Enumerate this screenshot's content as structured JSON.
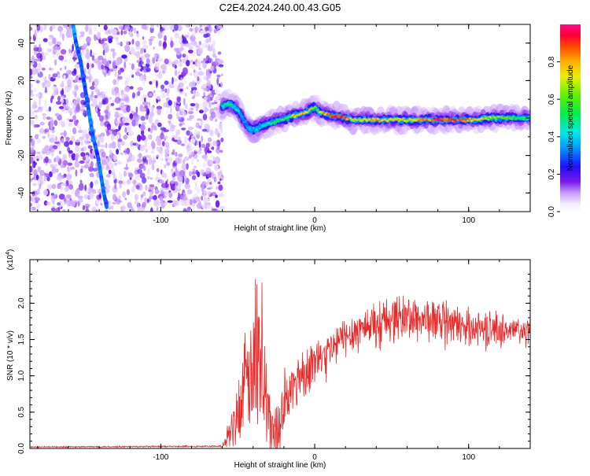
{
  "title": "C2E4.2024.240.00.43.G05",
  "colors": {
    "snr_line": "#e82a2a",
    "frame": "#000000"
  },
  "chart_data": [
    {
      "type": "heatmap",
      "xlabel": "Height of straight line (km)",
      "ylabel": "Frequency (Hz)",
      "xlim": [
        -185,
        140
      ],
      "ylim": [
        -50,
        50
      ],
      "xticks": [
        -100,
        0,
        100
      ],
      "xtick_labels": [
        "-100",
        "0",
        "100"
      ],
      "yticks": [
        -40,
        -20,
        0,
        20,
        40
      ],
      "ytick_labels": [
        "-40",
        "-20",
        "0",
        "20",
        "40"
      ],
      "colorbar": {
        "label": "Normalized spectral amplitude",
        "range": [
          0.0,
          1.0
        ],
        "ticks": [
          0.0,
          0.2,
          0.4,
          0.6,
          0.8
        ],
        "tick_labels": [
          "0.0",
          "0.2",
          "0.4",
          "0.6",
          "0.8"
        ]
      },
      "noise_region_x": [
        -185,
        -60
      ],
      "ridge": [
        {
          "x": -60,
          "y": 6,
          "a": 0.45
        },
        {
          "x": -56,
          "y": 8,
          "a": 0.5
        },
        {
          "x": -52,
          "y": 6,
          "a": 0.45
        },
        {
          "x": -48,
          "y": 2,
          "a": 0.35
        },
        {
          "x": -45,
          "y": -3,
          "a": 0.35
        },
        {
          "x": -42,
          "y": -6,
          "a": 0.35
        },
        {
          "x": -38,
          "y": -6,
          "a": 0.4
        },
        {
          "x": -34,
          "y": -4,
          "a": 0.4
        },
        {
          "x": -30,
          "y": -3,
          "a": 0.45
        },
        {
          "x": -26,
          "y": -2,
          "a": 0.5
        },
        {
          "x": -22,
          "y": -1,
          "a": 0.55
        },
        {
          "x": -18,
          "y": 0,
          "a": 0.6
        },
        {
          "x": -14,
          "y": 1,
          "a": 0.7
        },
        {
          "x": -10,
          "y": 2,
          "a": 0.8
        },
        {
          "x": -6,
          "y": 3,
          "a": 0.75
        },
        {
          "x": -3,
          "y": 4,
          "a": 0.7
        },
        {
          "x": 0,
          "y": 6,
          "a": 0.6
        },
        {
          "x": 3,
          "y": 3,
          "a": 0.7
        },
        {
          "x": 7,
          "y": 2,
          "a": 0.8
        },
        {
          "x": 11,
          "y": 1,
          "a": 0.9
        },
        {
          "x": 15,
          "y": 1,
          "a": 0.95
        },
        {
          "x": 20,
          "y": 0,
          "a": 0.85
        },
        {
          "x": 25,
          "y": -1,
          "a": 0.7
        },
        {
          "x": 30,
          "y": -1,
          "a": 0.7
        },
        {
          "x": 35,
          "y": -1,
          "a": 0.75
        },
        {
          "x": 40,
          "y": -1,
          "a": 0.8
        },
        {
          "x": 45,
          "y": -1,
          "a": 0.75
        },
        {
          "x": 50,
          "y": -1,
          "a": 0.7
        },
        {
          "x": 55,
          "y": -1,
          "a": 0.75
        },
        {
          "x": 60,
          "y": -1,
          "a": 0.7
        },
        {
          "x": 65,
          "y": -1,
          "a": 0.75
        },
        {
          "x": 70,
          "y": -1,
          "a": 0.8
        },
        {
          "x": 75,
          "y": -1,
          "a": 0.85
        },
        {
          "x": 80,
          "y": -1,
          "a": 0.95
        },
        {
          "x": 85,
          "y": -1,
          "a": 0.9
        },
        {
          "x": 90,
          "y": -1,
          "a": 0.9
        },
        {
          "x": 95,
          "y": -1,
          "a": 0.85
        },
        {
          "x": 100,
          "y": -1,
          "a": 0.8
        },
        {
          "x": 105,
          "y": -1,
          "a": 0.75
        },
        {
          "x": 110,
          "y": 0,
          "a": 0.7
        },
        {
          "x": 115,
          "y": 0,
          "a": 0.65
        },
        {
          "x": 120,
          "y": 0,
          "a": 0.6
        },
        {
          "x": 125,
          "y": 0,
          "a": 0.6
        },
        {
          "x": 130,
          "y": 0,
          "a": 0.55
        },
        {
          "x": 135,
          "y": 0,
          "a": 0.55
        },
        {
          "x": 140,
          "y": 0,
          "a": 0.5
        }
      ],
      "streak": [
        {
          "x": -157,
          "y": 50,
          "a": 0.35
        },
        {
          "x": -155,
          "y": 40,
          "a": 0.3
        },
        {
          "x": -152,
          "y": 30,
          "a": 0.28
        },
        {
          "x": -150,
          "y": 20,
          "a": 0.28
        },
        {
          "x": -148,
          "y": 10,
          "a": 0.3
        },
        {
          "x": -146,
          "y": 0,
          "a": 0.32
        },
        {
          "x": -144,
          "y": -10,
          "a": 0.3
        },
        {
          "x": -141,
          "y": -20,
          "a": 0.28
        },
        {
          "x": -139,
          "y": -30,
          "a": 0.32
        },
        {
          "x": -137,
          "y": -40,
          "a": 0.3
        },
        {
          "x": -135,
          "y": -48,
          "a": 0.28
        }
      ]
    },
    {
      "type": "line",
      "xlabel": "Height of straight line (km)",
      "ylabel": "SNR (10 * v/v)",
      "y_multiplier_label": "(x10",
      "y_multiplier_exp": "4",
      "y_multiplier_close": ")",
      "xlim": [
        -185,
        140
      ],
      "ylim": [
        0,
        2.6
      ],
      "xticks": [
        -100,
        0,
        100
      ],
      "xtick_labels": [
        "-100",
        "0",
        "100"
      ],
      "yticks": [
        0.0,
        0.5,
        1.0,
        1.5,
        2.0
      ],
      "ytick_labels": [
        "0.0",
        "0.5",
        "1.0",
        "1.5",
        "2.0"
      ],
      "series": [
        {
          "trend": [
            {
              "x": -185,
              "y": 0.02
            },
            {
              "x": -60,
              "y": 0.03
            },
            {
              "x": -52,
              "y": 0.3
            },
            {
              "x": -48,
              "y": 0.55
            },
            {
              "x": -44,
              "y": 0.9
            },
            {
              "x": -41,
              "y": 1.1
            },
            {
              "x": -38,
              "y": 0.9
            },
            {
              "x": -35,
              "y": 1.3
            },
            {
              "x": -32,
              "y": 0.6
            },
            {
              "x": -28,
              "y": 0.3
            },
            {
              "x": -25,
              "y": 0.2
            },
            {
              "x": -20,
              "y": 0.6
            },
            {
              "x": -15,
              "y": 0.8
            },
            {
              "x": -10,
              "y": 1.0
            },
            {
              "x": -5,
              "y": 1.1
            },
            {
              "x": 0,
              "y": 1.2
            },
            {
              "x": 5,
              "y": 1.25
            },
            {
              "x": 10,
              "y": 1.35
            },
            {
              "x": 15,
              "y": 1.45
            },
            {
              "x": 20,
              "y": 1.55
            },
            {
              "x": 30,
              "y": 1.65
            },
            {
              "x": 40,
              "y": 1.75
            },
            {
              "x": 50,
              "y": 1.8
            },
            {
              "x": 60,
              "y": 1.8
            },
            {
              "x": 70,
              "y": 1.78
            },
            {
              "x": 80,
              "y": 1.75
            },
            {
              "x": 90,
              "y": 1.7
            },
            {
              "x": 100,
              "y": 1.68
            },
            {
              "x": 110,
              "y": 1.65
            },
            {
              "x": 120,
              "y": 1.63
            },
            {
              "x": 130,
              "y": 1.62
            },
            {
              "x": 140,
              "y": 1.6
            }
          ],
          "noise": [
            {
              "x": -185,
              "a": 0.01
            },
            {
              "x": -60,
              "a": 0.015
            },
            {
              "x": -55,
              "a": 0.3
            },
            {
              "x": -45,
              "a": 0.9
            },
            {
              "x": -35,
              "a": 1.0
            },
            {
              "x": -25,
              "a": 0.5
            },
            {
              "x": -10,
              "a": 0.45
            },
            {
              "x": 5,
              "a": 0.35
            },
            {
              "x": 20,
              "a": 0.35
            },
            {
              "x": 60,
              "a": 0.4
            },
            {
              "x": 100,
              "a": 0.3
            },
            {
              "x": 140,
              "a": 0.25
            }
          ]
        }
      ]
    }
  ]
}
